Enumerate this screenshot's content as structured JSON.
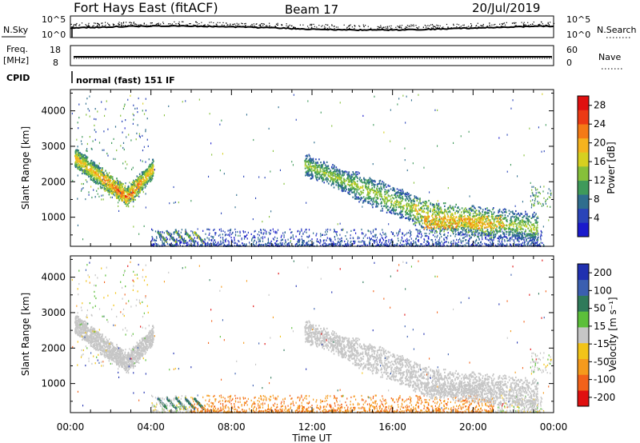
{
  "header": {
    "station": "Fort Hays East (fitACF)",
    "beam": "Beam 17",
    "date": "20/Jul/2019"
  },
  "top_panels": {
    "nsky": {
      "label": "N.Sky",
      "ticks": [
        "10^5",
        "10^0"
      ]
    },
    "nsearch": {
      "label": "N.Search"
    },
    "freq": {
      "label_line1": "Freq.",
      "label_line2": "[MHz]",
      "ticks": [
        "18",
        "8"
      ]
    },
    "nave": {
      "label": "Nave",
      "ticks": [
        "60",
        "0"
      ]
    },
    "cpid": {
      "label": "CPID",
      "value": "normal (fast) 151 IF"
    }
  },
  "colors": {
    "power": [
      "#1a1acc",
      "#2a44b8",
      "#2f6e8e",
      "#3f9a5a",
      "#86c03a",
      "#d6d020",
      "#f5b31e",
      "#f47a16",
      "#ec3a14",
      "#e01010"
    ],
    "velocity": [
      "#2030b0",
      "#3b5fb0",
      "#2f7a5a",
      "#5cbf3a",
      "#c6c6c6",
      "#f2c418",
      "#f59a1c",
      "#f2621a",
      "#e01010"
    ],
    "ground": "#c6c6c6"
  },
  "chart_data": [
    {
      "type": "heatmap",
      "title": "",
      "xlabel": "Time UT",
      "ylabel": "Slant Range [km]",
      "xlim": [
        "00:00",
        "00:00"
      ],
      "x_ticks": [
        "00:00",
        "04:00",
        "08:00",
        "12:00",
        "16:00",
        "20:00",
        "00:00"
      ],
      "ylim": [
        180,
        4600
      ],
      "y_ticks": [
        1000,
        2000,
        3000,
        4000
      ],
      "colorbar": {
        "label": "Power [dB]",
        "ticks": [
          4,
          8,
          12,
          16,
          20,
          24,
          28
        ],
        "range": [
          0,
          30
        ]
      },
      "regions": [
        {
          "name": "evening F-region band",
          "t_hours": [
            0.2,
            4.1
          ],
          "range_km": [
            1400,
            2900
          ],
          "peak_db": 28
        },
        {
          "name": "near-range echoes",
          "t_hours": [
            4.0,
            24.0
          ],
          "range_km": [
            200,
            700
          ],
          "peak_db": 12
        },
        {
          "name": "afternoon band",
          "t_hours": [
            11.6,
            23.2
          ],
          "range_km": [
            600,
            2700
          ],
          "peak_db": 22
        }
      ]
    },
    {
      "type": "heatmap",
      "title": "",
      "xlabel": "Time UT",
      "ylabel": "Slant Range [km]",
      "xlim": [
        "00:00",
        "00:00"
      ],
      "x_ticks": [
        "00:00",
        "04:00",
        "08:00",
        "12:00",
        "16:00",
        "20:00",
        "00:00"
      ],
      "ylim": [
        180,
        4600
      ],
      "y_ticks": [
        1000,
        2000,
        3000,
        4000
      ],
      "colorbar": {
        "label": "Velocity [m s⁻¹]",
        "ticks": [
          200,
          100,
          50,
          15,
          -15,
          -50,
          -100,
          -200
        ]
      },
      "regions": [
        {
          "name": "ground scatter band (evening)",
          "t_hours": [
            0.2,
            4.1
          ],
          "range_km": [
            1400,
            2900
          ],
          "velocity": 0
        },
        {
          "name": "green streaks",
          "t_hours": [
            4.3,
            6.4
          ],
          "range_km": [
            250,
            600
          ],
          "velocity": 60
        },
        {
          "name": "near-range orange echoes",
          "t_hours": [
            6.5,
            21.0
          ],
          "range_km": [
            200,
            700
          ],
          "velocity": -60
        },
        {
          "name": "ground scatter band (afternoon)",
          "t_hours": [
            11.6,
            23.2
          ],
          "range_km": [
            600,
            2700
          ],
          "velocity": 0
        }
      ]
    }
  ]
}
